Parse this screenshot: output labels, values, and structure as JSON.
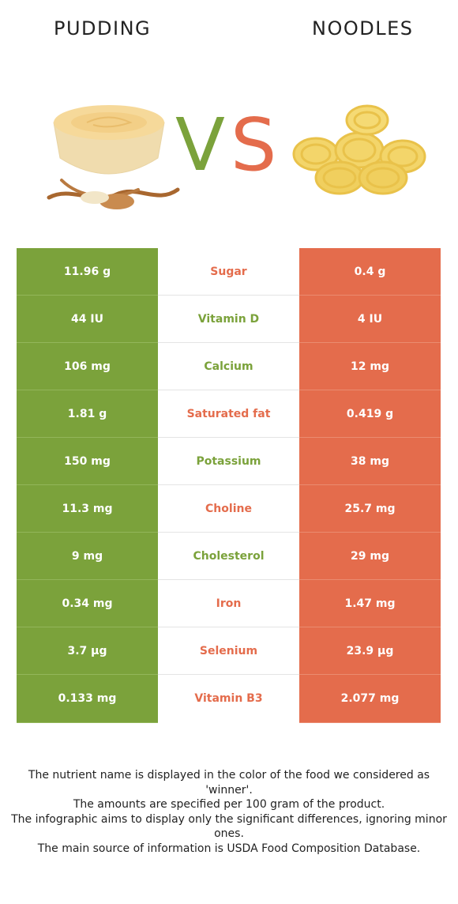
{
  "header": {
    "left_food": "PUDDING",
    "right_food": "NOODLES",
    "vs_v": "V",
    "vs_s": "S"
  },
  "colors": {
    "winner_left": "#7ba23b",
    "winner_right": "#e46c4c"
  },
  "rows": [
    {
      "left": "11.96 g",
      "nutrient": "Sugar",
      "right": "0.4 g",
      "winner": "right"
    },
    {
      "left": "44 IU",
      "nutrient": "Vitamin D",
      "right": "4 IU",
      "winner": "left"
    },
    {
      "left": "106 mg",
      "nutrient": "Calcium",
      "right": "12 mg",
      "winner": "left"
    },
    {
      "left": "1.81 g",
      "nutrient": "Saturated fat",
      "right": "0.419 g",
      "winner": "right"
    },
    {
      "left": "150 mg",
      "nutrient": "Potassium",
      "right": "38 mg",
      "winner": "left"
    },
    {
      "left": "11.3 mg",
      "nutrient": "Choline",
      "right": "25.7 mg",
      "winner": "right"
    },
    {
      "left": "9 mg",
      "nutrient": "Cholesterol",
      "right": "29 mg",
      "winner": "left"
    },
    {
      "left": "0.34 mg",
      "nutrient": "Iron",
      "right": "1.47 mg",
      "winner": "right"
    },
    {
      "left": "3.7 µg",
      "nutrient": "Selenium",
      "right": "23.9 µg",
      "winner": "right"
    },
    {
      "left": "0.133 mg",
      "nutrient": "Vitamin B3",
      "right": "2.077 mg",
      "winner": "right"
    }
  ],
  "footnote": {
    "line1": "The nutrient name is displayed in the color of the food we considered as 'winner'.",
    "line2": "The amounts are specified per 100 gram of the product.",
    "line3": "The infographic aims to display only the significant differences, ignoring minor ones.",
    "line4": "The main source of information is USDA Food Composition Database."
  }
}
